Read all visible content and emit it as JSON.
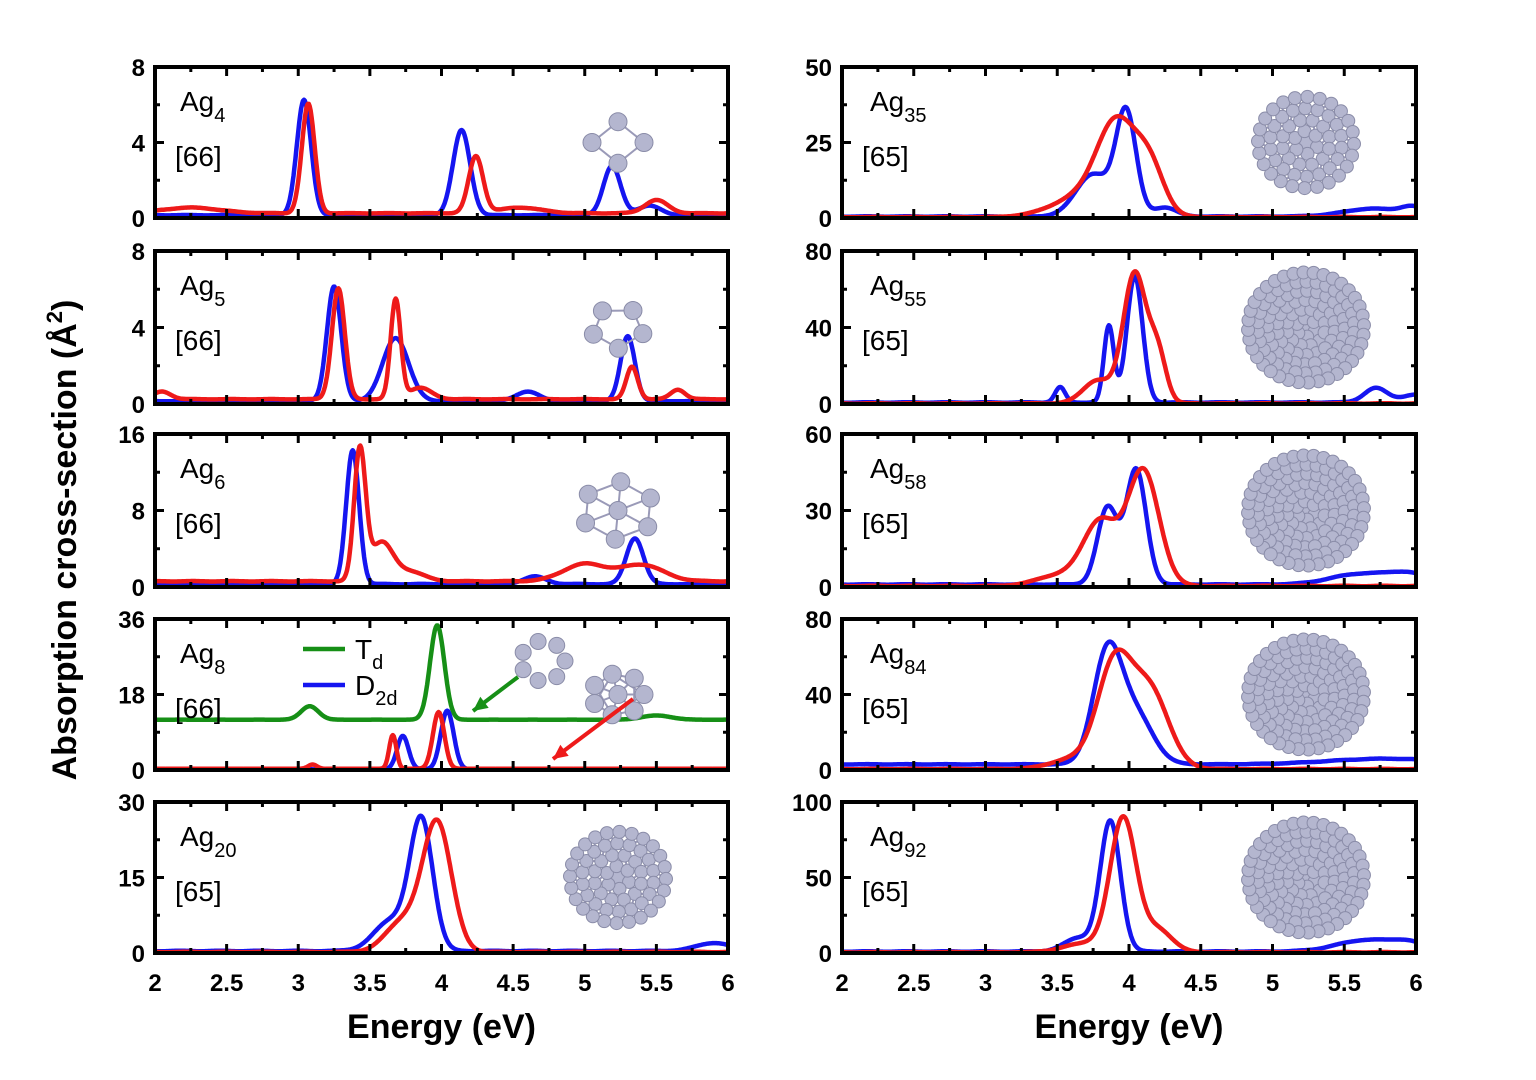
{
  "chart_data": {
    "type": "line",
    "ylabel": "Absorption cross-section (Å²)",
    "ylabel_parts": {
      "main": "Absorption cross-section (",
      "unit": "Å",
      "sup": "2",
      "close": ")"
    },
    "xlabel": "Energy (eV)",
    "xlim": [
      2,
      6
    ],
    "xticks": [
      2,
      2.5,
      3,
      3.5,
      4,
      4.5,
      5,
      5.5,
      6
    ],
    "xtick_labels": [
      "2",
      "2.5",
      "3",
      "3.5",
      "4",
      "4.5",
      "5",
      "5.5",
      "6"
    ],
    "series_colors": {
      "blue": "#1515f0",
      "red": "#ee1a1a",
      "green": "#168f16"
    },
    "legend": {
      "entries": [
        {
          "name": "T",
          "sub": "d",
          "color": "green"
        },
        {
          "name": "D",
          "sub": "2d",
          "color": "blue"
        }
      ]
    },
    "panels": [
      {
        "id": "Ag4",
        "col": 0,
        "row": 0,
        "base": "Ag",
        "sub": "4",
        "ref": "[66]",
        "ylim": [
          0,
          8
        ],
        "yticks": [
          0,
          4,
          8
        ],
        "series": [
          {
            "name": "blue",
            "peaks": [
              [
                3.04,
                6.1,
                0.05
              ],
              [
                4.14,
                4.5,
                0.06
              ],
              [
                5.19,
                2.6,
                0.06
              ],
              [
                5.45,
                0.5,
                0.08
              ]
            ],
            "base": 0.15
          },
          {
            "name": "red",
            "peaks": [
              [
                3.07,
                5.8,
                0.045
              ],
              [
                4.24,
                3.0,
                0.05
              ],
              [
                5.5,
                0.7,
                0.08
              ],
              [
                2.25,
                0.3,
                0.2
              ],
              [
                4.55,
                0.3,
                0.15
              ]
            ],
            "base": 0.25
          }
        ]
      },
      {
        "id": "Ag5",
        "col": 0,
        "row": 1,
        "base": "Ag",
        "sub": "5",
        "ref": "[66]",
        "ylim": [
          0,
          8
        ],
        "yticks": [
          0,
          4,
          8
        ],
        "series": [
          {
            "name": "blue",
            "peaks": [
              [
                3.25,
                6.0,
                0.05
              ],
              [
                3.68,
                3.3,
                0.09
              ],
              [
                5.3,
                3.4,
                0.05
              ],
              [
                4.6,
                0.5,
                0.08
              ]
            ],
            "base": 0.15
          },
          {
            "name": "red",
            "peaks": [
              [
                3.28,
                5.8,
                0.045
              ],
              [
                3.68,
                5.2,
                0.035
              ],
              [
                3.85,
                0.6,
                0.08
              ],
              [
                5.33,
                1.7,
                0.04
              ],
              [
                5.65,
                0.5,
                0.05
              ],
              [
                2.05,
                0.4,
                0.06
              ]
            ],
            "base": 0.25
          }
        ]
      },
      {
        "id": "Ag6",
        "col": 0,
        "row": 2,
        "base": "Ag",
        "sub": "6",
        "ref": "[66]",
        "ylim": [
          0,
          16
        ],
        "yticks": [
          0,
          8,
          16
        ],
        "series": [
          {
            "name": "blue",
            "peaks": [
              [
                3.38,
                14.0,
                0.045
              ],
              [
                5.35,
                4.8,
                0.06
              ],
              [
                4.65,
                0.8,
                0.08
              ]
            ],
            "base": 0.3
          },
          {
            "name": "red",
            "peaks": [
              [
                3.43,
                13.5,
                0.04
              ],
              [
                3.58,
                4.0,
                0.08
              ],
              [
                3.78,
                1.0,
                0.1
              ],
              [
                5.0,
                1.8,
                0.15
              ],
              [
                5.4,
                1.7,
                0.15
              ]
            ],
            "base": 0.6
          }
        ]
      },
      {
        "id": "Ag8",
        "col": 0,
        "row": 3,
        "base": "Ag",
        "sub": "8",
        "ref": "[66]",
        "ylim": [
          0,
          36
        ],
        "yticks": [
          0,
          18,
          36
        ],
        "series": [
          {
            "name": "green",
            "peaks": [
              [
                3.08,
                3.2,
                0.06
              ],
              [
                3.97,
                22.5,
                0.05
              ],
              [
                5.5,
                1.0,
                0.1
              ]
            ],
            "base": 12
          },
          {
            "name": "blue",
            "peaks": [
              [
                3.73,
                8.0,
                0.04
              ],
              [
                4.04,
                14.0,
                0.045
              ]
            ],
            "base": 0.15
          },
          {
            "name": "red",
            "peaks": [
              [
                3.66,
                8.0,
                0.025
              ],
              [
                3.98,
                13.5,
                0.04
              ],
              [
                3.1,
                1.0,
                0.03
              ]
            ],
            "base": 0.3
          }
        ]
      },
      {
        "id": "Ag20",
        "col": 0,
        "row": 4,
        "base": "Ag",
        "sub": "20",
        "ref": "[65]",
        "ylim": [
          0,
          30
        ],
        "yticks": [
          0,
          15,
          30
        ],
        "series": [
          {
            "name": "blue",
            "peaks": [
              [
                3.86,
                25.5,
                0.08
              ],
              [
                3.65,
                6.0,
                0.12
              ],
              [
                5.9,
                1.6,
                0.12
              ]
            ],
            "base": 0.4
          },
          {
            "name": "red",
            "peaks": [
              [
                3.97,
                25.5,
                0.1
              ],
              [
                3.73,
                6.0,
                0.12
              ]
            ],
            "base": 0.2
          }
        ]
      },
      {
        "id": "Ag35",
        "col": 1,
        "row": 0,
        "base": "Ag",
        "sub": "35",
        "ref": "[65]",
        "ylim": [
          0,
          50
        ],
        "yticks": [
          0,
          25,
          50
        ],
        "series": [
          {
            "name": "blue",
            "peaks": [
              [
                3.98,
                34.0,
                0.07
              ],
              [
                3.75,
                14.0,
                0.12
              ],
              [
                4.25,
                3.0,
                0.08
              ],
              [
                5.7,
                2.6,
                0.2
              ],
              [
                5.98,
                2.5,
                0.08
              ]
            ],
            "base": 0.5
          },
          {
            "name": "red",
            "peaks": [
              [
                3.92,
                30.0,
                0.14
              ],
              [
                4.15,
                14.0,
                0.1
              ],
              [
                3.65,
                6.0,
                0.2
              ]
            ],
            "base": 0.3
          }
        ]
      },
      {
        "id": "Ag55",
        "col": 1,
        "row": 1,
        "base": "Ag",
        "sub": "55",
        "ref": "[65]",
        "ylim": [
          0,
          80
        ],
        "yticks": [
          0,
          40,
          80
        ],
        "series": [
          {
            "name": "blue",
            "peaks": [
              [
                4.04,
                66.0,
                0.055
              ],
              [
                3.86,
                40.0,
                0.035
              ],
              [
                3.52,
                8.0,
                0.035
              ],
              [
                5.72,
                7.5,
                0.08
              ],
              [
                6.0,
                4.0,
                0.1
              ]
            ],
            "base": 0.8
          },
          {
            "name": "red",
            "peaks": [
              [
                4.04,
                68.0,
                0.08
              ],
              [
                3.78,
                12.0,
                0.1
              ],
              [
                4.2,
                25.0,
                0.06
              ]
            ],
            "base": 0.3
          }
        ]
      },
      {
        "id": "Ag58",
        "col": 1,
        "row": 2,
        "base": "Ag",
        "sub": "58",
        "ref": "[65]",
        "ylim": [
          0,
          60
        ],
        "yticks": [
          0,
          30,
          60
        ],
        "series": [
          {
            "name": "blue",
            "peaks": [
              [
                4.05,
                45.0,
                0.07
              ],
              [
                3.85,
                30.0,
                0.07
              ],
              [
                5.6,
                4.0,
                0.2
              ],
              [
                5.95,
                4.0,
                0.15
              ]
            ],
            "base": 1.0
          },
          {
            "name": "red",
            "peaks": [
              [
                4.1,
                45.0,
                0.11
              ],
              [
                3.8,
                25.0,
                0.12
              ],
              [
                3.5,
                4.0,
                0.15
              ]
            ],
            "base": 0.4
          }
        ]
      },
      {
        "id": "Ag84",
        "col": 1,
        "row": 3,
        "base": "Ag",
        "sub": "84",
        "ref": "[65]",
        "ylim": [
          0,
          80
        ],
        "yticks": [
          0,
          40,
          80
        ],
        "series": [
          {
            "name": "blue",
            "peaks": [
              [
                3.85,
                58.0,
                0.1
              ],
              [
                4.05,
                25.0,
                0.12
              ],
              [
                5.8,
                3.0,
                0.4
              ]
            ],
            "base": 3.0
          },
          {
            "name": "red",
            "peaks": [
              [
                3.9,
                55.0,
                0.12
              ],
              [
                4.15,
                40.0,
                0.13
              ],
              [
                3.6,
                5.0,
                0.15
              ]
            ],
            "base": 0.5
          }
        ]
      },
      {
        "id": "Ag92",
        "col": 1,
        "row": 4,
        "base": "Ag",
        "sub": "92",
        "ref": "[65]",
        "ylim": [
          0,
          100
        ],
        "yticks": [
          0,
          50,
          100
        ],
        "series": [
          {
            "name": "blue",
            "peaks": [
              [
                3.87,
                86.0,
                0.07
              ],
              [
                3.65,
                9.0,
                0.1
              ],
              [
                5.65,
                7.5,
                0.2
              ],
              [
                5.95,
                5.0,
                0.12
              ]
            ],
            "base": 1.0
          },
          {
            "name": "red",
            "peaks": [
              [
                3.96,
                88.0,
                0.09
              ],
              [
                4.2,
                15.0,
                0.1
              ],
              [
                3.7,
                6.0,
                0.15
              ]
            ],
            "base": 0.5
          }
        ]
      }
    ]
  }
}
